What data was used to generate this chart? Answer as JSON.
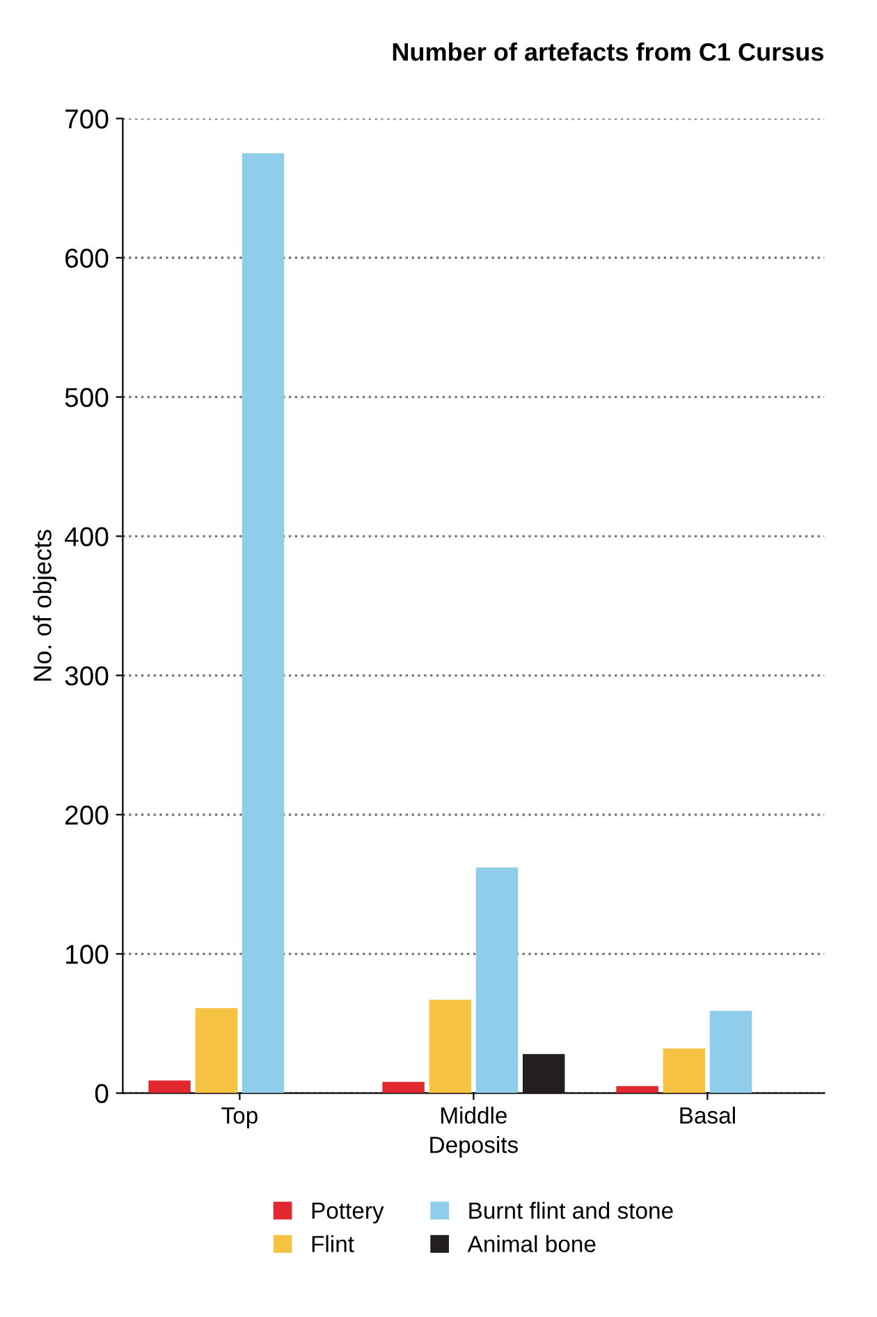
{
  "chart_data": {
    "type": "bar",
    "title": "Number of artefacts from C1 Cursus",
    "xlabel": "Deposits",
    "ylabel": "No. of objects",
    "categories": [
      "Top",
      "Middle",
      "Basal"
    ],
    "series": [
      {
        "name": "Pottery",
        "color": "#e0282e",
        "values": [
          9,
          8,
          5
        ]
      },
      {
        "name": "Flint",
        "color": "#f5c242",
        "values": [
          61,
          67,
          32
        ]
      },
      {
        "name": "Burnt flint and stone",
        "color": "#8fcdea",
        "values": [
          675,
          162,
          59
        ]
      },
      {
        "name": "Animal bone",
        "color": "#231f20",
        "values": [
          null,
          28,
          null
        ]
      }
    ],
    "ylim": [
      0,
      700
    ],
    "yticks": [
      0,
      100,
      200,
      300,
      400,
      500,
      600,
      700
    ],
    "grid": "y",
    "legend": "bottom"
  }
}
